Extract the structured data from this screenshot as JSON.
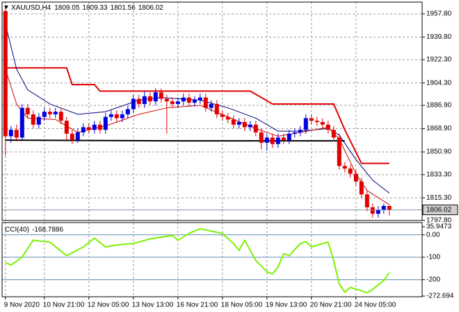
{
  "chart_data": {
    "type": "candlestick",
    "title": "XAUUSD,H4",
    "up_color": "#0000e0",
    "down_color": "#e00000",
    "grid": true,
    "xlim": [
      -0.6,
      74.9
    ],
    "xticks": [
      {
        "value": 0,
        "label": "9 Nov 2020"
      },
      {
        "value": 7,
        "label": "10 Nov 21:00"
      },
      {
        "value": 15,
        "label": "12 Nov 05:00"
      },
      {
        "value": 23,
        "label": "13 Nov 13:00"
      },
      {
        "value": 31,
        "label": "16 Nov 21:00"
      },
      {
        "value": 39,
        "label": "18 Nov 05:00"
      },
      {
        "value": 47,
        "label": "19 Nov 13:00"
      },
      {
        "value": 55,
        "label": "20 Nov 21:00"
      },
      {
        "value": 63,
        "label": "24 Nov 05:00"
      }
    ],
    "ylim": [
      1797.8,
      1966.9
    ],
    "yticks": [
      {
        "value": 1957.8,
        "label": "1957.80"
      },
      {
        "value": 1939.8,
        "label": "1939.80"
      },
      {
        "value": 1922.3,
        "label": "1922.30"
      },
      {
        "value": 1904.3,
        "label": "1904.30"
      },
      {
        "value": 1886.9,
        "label": "1886.90"
      },
      {
        "value": 1868.9,
        "label": "1868.90"
      },
      {
        "value": 1850.9,
        "label": "1850.90"
      },
      {
        "value": 1833.3,
        "label": "1833.30"
      },
      {
        "value": 1815.3,
        "label": "1815.30"
      },
      {
        "value": 1797.8,
        "label": "1797.80"
      }
    ],
    "candles": {
      "open": [
        1960,
        1863,
        1868,
        1862,
        1885,
        1880,
        1872,
        1878,
        1882,
        1880,
        1882,
        1875,
        1865,
        1860,
        1866,
        1870,
        1868,
        1872,
        1868,
        1878,
        1880,
        1877,
        1880,
        1884,
        1892,
        1888,
        1894,
        1890,
        1897,
        1892,
        1890,
        1888,
        1890,
        1893,
        1889,
        1891,
        1893,
        1885,
        1888,
        1880,
        1878,
        1876,
        1872,
        1874,
        1870,
        1872,
        1866,
        1858,
        1862,
        1857,
        1862,
        1860,
        1865,
        1866,
        1868,
        1877,
        1875,
        1874,
        1872,
        1868,
        1862,
        1840,
        1838,
        1834,
        1828,
        1818,
        1808,
        1803,
        1806,
        1809.05
      ],
      "high": [
        1963,
        1871,
        1872,
        1888,
        1888,
        1883,
        1881,
        1885,
        1885,
        1885,
        1885,
        1878,
        1868,
        1869,
        1873,
        1873,
        1875,
        1875,
        1881,
        1883,
        1883,
        1883,
        1887,
        1895,
        1895,
        1898,
        1897,
        1900,
        1900,
        1895,
        1893,
        1893,
        1896,
        1896,
        1894,
        1896,
        1896,
        1891,
        1891,
        1883,
        1881,
        1879,
        1877,
        1877,
        1875,
        1875,
        1869,
        1865,
        1865,
        1865,
        1865,
        1868,
        1869,
        1871,
        1880,
        1880,
        1878,
        1877,
        1875,
        1871,
        1865,
        1843,
        1841,
        1837,
        1831,
        1821,
        1811,
        1809,
        1811,
        1809.33
      ],
      "low": [
        1848,
        1858,
        1859,
        1860,
        1877,
        1869,
        1869,
        1875,
        1877,
        1877,
        1872,
        1860,
        1857,
        1858,
        1863,
        1865,
        1865,
        1865,
        1865,
        1875,
        1874,
        1874,
        1877,
        1881,
        1885,
        1885,
        1887,
        1887,
        1889,
        1865,
        1885,
        1885,
        1887,
        1886,
        1886,
        1888,
        1882,
        1882,
        1877,
        1875,
        1873,
        1869,
        1869,
        1867,
        1867,
        1863,
        1853,
        1852,
        1854,
        1854,
        1857,
        1857,
        1862,
        1863,
        1865,
        1872,
        1871,
        1869,
        1865,
        1859,
        1837,
        1835,
        1831,
        1825,
        1815,
        1805,
        1800,
        1800,
        1803,
        1801.56
      ],
      "close": [
        1863,
        1868,
        1862,
        1885,
        1880,
        1872,
        1878,
        1882,
        1880,
        1882,
        1875,
        1865,
        1860,
        1866,
        1870,
        1868,
        1872,
        1868,
        1878,
        1880,
        1877,
        1880,
        1884,
        1892,
        1888,
        1894,
        1890,
        1897,
        1892,
        1890,
        1888,
        1890,
        1893,
        1889,
        1891,
        1893,
        1885,
        1888,
        1880,
        1878,
        1876,
        1872,
        1874,
        1870,
        1872,
        1866,
        1858,
        1862,
        1857,
        1862,
        1860,
        1865,
        1866,
        1868,
        1877,
        1875,
        1874,
        1872,
        1868,
        1862,
        1840,
        1838,
        1834,
        1828,
        1818,
        1808,
        1803,
        1806,
        1809.05,
        1806.02
      ]
    },
    "series": [
      {
        "color": "#e00000",
        "width": 2,
        "x": [
          0,
          11,
          12,
          16,
          17,
          44,
          48,
          59,
          61,
          64,
          69
        ],
        "values": [
          1916,
          1916,
          1903,
          1903,
          1898,
          1898,
          1888,
          1888,
          1868,
          1842,
          1842
        ]
      },
      {
        "color": "#000000",
        "width": 2,
        "x": [
          0,
          30,
          61
        ],
        "values": [
          1860,
          1859.5,
          1859.5
        ]
      },
      {
        "color": "#000080",
        "width": 1,
        "x": [
          0,
          2,
          4,
          8,
          13,
          18,
          24,
          28,
          35,
          40,
          45,
          49,
          53,
          58,
          60,
          63,
          66,
          69
        ],
        "values": [
          1950,
          1915,
          1899,
          1888,
          1880,
          1882,
          1891,
          1893,
          1891,
          1885,
          1877,
          1867,
          1867,
          1869,
          1864,
          1845,
          1829,
          1819
        ]
      },
      {
        "color": "#d00000",
        "width": 1,
        "x": [
          0,
          2,
          4,
          9,
          13,
          18,
          24,
          29,
          35,
          40,
          45,
          49,
          53,
          58,
          60,
          63,
          65,
          69
        ],
        "values": [
          1915,
          1888,
          1877,
          1876,
          1866,
          1871,
          1880,
          1885,
          1887,
          1878,
          1869,
          1863,
          1866,
          1870,
          1861,
          1834,
          1821,
          1810
        ]
      }
    ],
    "last_price_color": "#7f8fa6",
    "indicator": {
      "type": "line",
      "title": "CCI(40)",
      "color": "#7cf000",
      "level_color": "#5f8fb4",
      "ylim": [
        -272.694,
        35.9473
      ],
      "yticks": [
        35.9473,
        {
          "value": 0,
          "label": "0.00"
        },
        -100,
        -200,
        -272.694
      ],
      "x": [
        0,
        1,
        3,
        5,
        8,
        11,
        14,
        16,
        18,
        20,
        23,
        26,
        30,
        31,
        33,
        35,
        39,
        41,
        42,
        43,
        45,
        47,
        48,
        49,
        50,
        51,
        53,
        54,
        55,
        57,
        58,
        59,
        60,
        61,
        62,
        64,
        65,
        66,
        68,
        69
      ],
      "values": [
        -123,
        -135,
        -99,
        -24,
        -33,
        -93,
        -54,
        -15,
        -54,
        -45,
        -39,
        -18,
        -3,
        -24,
        6,
        27,
        6,
        -39,
        -69,
        -24,
        -114,
        -165,
        -174,
        -144,
        -84,
        -93,
        -39,
        -30,
        -54,
        -39,
        -33,
        -114,
        -219,
        -255,
        -234,
        -249,
        -258,
        -243,
        -204,
        -168.7886
      ]
    }
  }
}
